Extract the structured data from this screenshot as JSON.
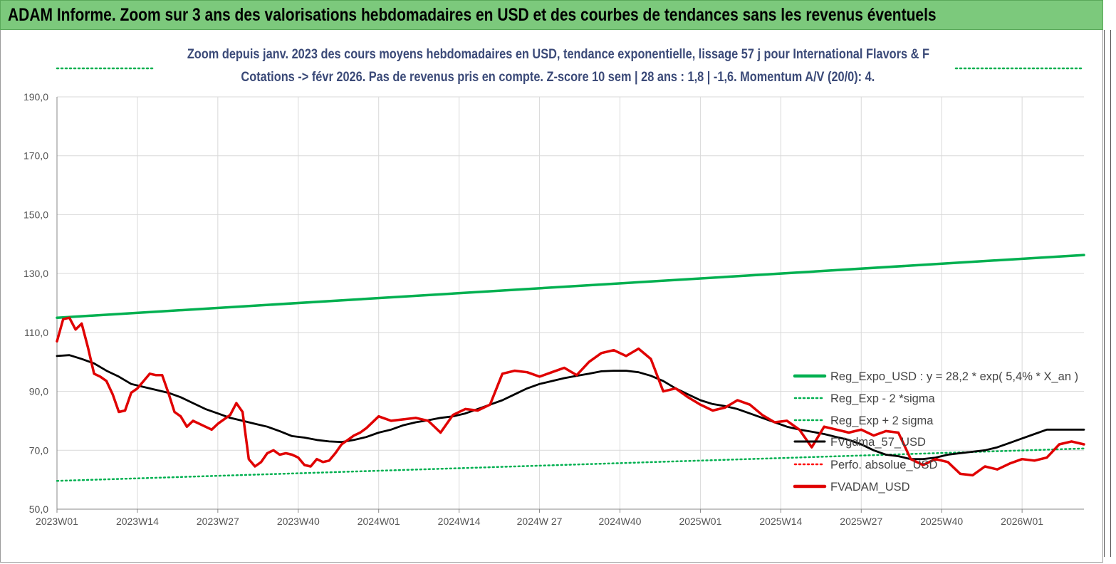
{
  "header": {
    "title": "ADAM Informe. Zoom sur 3 ans des valorisations hebdomadaires en USD et des courbes de tendances sans les revenus éventuels"
  },
  "chart_data": {
    "type": "line",
    "title_line1": "Zoom depuis janv. 2023 des cours moyens hebdomadaires en USD, tendance exponentielle, lissage 57 j pour International Flavors & F",
    "title_line2": "Cotations -> févr 2026. Pas de revenus pris en compte. Z-score 10 sem | 28 ans : 1,8 | -1,6. Momentum A/V (20/0): 4.",
    "y_ticks": [
      "50,0",
      "70,0",
      "90,0",
      "110,0",
      "130,0",
      "150,0",
      "170,0",
      "190,0"
    ],
    "ylim": [
      50,
      190
    ],
    "x_ticks": [
      "2023W01",
      "2023W14",
      "2023W27",
      "2023W40",
      "2024W01",
      "2024W14",
      "2024W 27",
      "2024W40",
      "2025W01",
      "2025W14",
      "2025W27",
      "2025W40",
      "2026W01"
    ],
    "x_range_weeks": [
      0,
      166
    ],
    "grid": true,
    "legend_position": "right",
    "series": [
      {
        "name": "Reg_Expo_USD : y = 28,2 * exp( 5,4% *  X_an )",
        "color": "#00b050",
        "style": "solid-thick",
        "x": [
          0,
          166
        ],
        "values": [
          115.0,
          136.3
        ]
      },
      {
        "name": "Reg_Exp - 2 *sigma",
        "color": "#00b050",
        "style": "dotted",
        "x": [
          0,
          166
        ],
        "values": [
          59.6,
          70.6
        ]
      },
      {
        "name": "Reg_Exp + 2 sigma",
        "color": "#00b050",
        "style": "dotted",
        "x": [
          0,
          166
        ],
        "values": [
          199.5,
          199.5
        ]
      },
      {
        "name": "FVgdma_57_USD",
        "color": "#000000",
        "style": "solid",
        "x": [
          0,
          2,
          4,
          6,
          8,
          10,
          12,
          14,
          16,
          18,
          20,
          22,
          24,
          26,
          28,
          30,
          32,
          34,
          36,
          38,
          40,
          42,
          44,
          46,
          48,
          50,
          52,
          54,
          56,
          58,
          60,
          62,
          64,
          66,
          68,
          70,
          72,
          74,
          76,
          78,
          80,
          82,
          84,
          86,
          88,
          90,
          92,
          94,
          96,
          98,
          100,
          102,
          104,
          106,
          108,
          110,
          112,
          114,
          116,
          118,
          120,
          122,
          124,
          126,
          128,
          130,
          132,
          134,
          136,
          138,
          140,
          142,
          144,
          146,
          148,
          150,
          152,
          154,
          156,
          158,
          160,
          162,
          164,
          166
        ],
        "values": [
          102.0,
          102.3,
          101.0,
          99.5,
          97.0,
          95.0,
          92.5,
          91.5,
          90.5,
          89.5,
          88.0,
          86.0,
          84.0,
          82.5,
          81.0,
          80.0,
          79.0,
          78.0,
          76.5,
          74.8,
          74.3,
          73.5,
          73.0,
          72.8,
          73.5,
          74.5,
          76.0,
          77.0,
          78.5,
          79.5,
          80.2,
          81.0,
          81.5,
          82.5,
          84.0,
          85.5,
          87.0,
          89.0,
          91.0,
          92.5,
          93.5,
          94.5,
          95.3,
          96.0,
          96.8,
          97.0,
          97.0,
          96.5,
          95.3,
          93.5,
          91.0,
          89.0,
          87.0,
          85.7,
          85.0,
          84.0,
          82.5,
          81.0,
          79.5,
          78.0,
          77.0,
          76.3,
          75.5,
          74.5,
          73.5,
          72.0,
          70.0,
          68.5,
          68.0,
          67.0,
          67.0,
          67.5,
          68.5,
          69.0,
          69.5,
          70.0,
          71.0,
          72.5,
          74.0,
          75.5,
          77.0,
          77.0,
          77.0,
          77.0
        ]
      },
      {
        "name": "Perfo. absolue_USD",
        "color": "#ff0000",
        "style": "dotted",
        "x": [],
        "values": []
      },
      {
        "name": "FVADAM_USD",
        "color": "#e00000",
        "style": "solid-thick",
        "x": [
          0,
          1,
          2,
          3,
          4,
          5,
          6,
          7,
          8,
          9,
          10,
          11,
          12,
          13,
          14,
          15,
          16,
          17,
          18,
          19,
          20,
          21,
          22,
          23,
          24,
          25,
          26,
          27,
          28,
          29,
          30,
          31,
          32,
          33,
          34,
          35,
          36,
          37,
          38,
          39,
          40,
          41,
          42,
          43,
          44,
          45,
          46,
          47,
          48,
          49,
          50,
          52,
          54,
          56,
          58,
          60,
          62,
          64,
          66,
          68,
          70,
          72,
          74,
          76,
          78,
          80,
          82,
          84,
          86,
          88,
          90,
          92,
          94,
          96,
          98,
          100,
          102,
          104,
          106,
          108,
          110,
          112,
          114,
          116,
          118,
          120,
          122,
          124,
          126,
          128,
          130,
          132,
          134,
          136,
          138,
          140,
          142,
          144,
          146,
          148,
          150,
          152,
          154,
          156,
          158,
          160,
          162,
          164,
          166
        ],
        "values": [
          107.0,
          114.5,
          115.0,
          111.0,
          113.0,
          105.0,
          96.0,
          95.0,
          93.5,
          89.0,
          83.0,
          83.5,
          89.5,
          91.0,
          93.5,
          96.0,
          95.5,
          95.5,
          89.5,
          83.0,
          81.5,
          78.0,
          80.0,
          79.0,
          78.0,
          77.0,
          79.0,
          80.5,
          82.0,
          86.0,
          83.0,
          67.0,
          64.5,
          66.0,
          69.0,
          70.0,
          68.5,
          69.0,
          68.5,
          67.5,
          65.0,
          64.5,
          67.0,
          66.0,
          66.5,
          69.0,
          72.0,
          73.5,
          75.0,
          76.0,
          77.5,
          81.5,
          80.0,
          80.5,
          81.0,
          80.0,
          76.0,
          82.0,
          84.0,
          83.5,
          85.5,
          96.0,
          97.0,
          96.5,
          95.0,
          96.5,
          98.0,
          95.5,
          100.0,
          103.0,
          104.0,
          102.0,
          104.5,
          101.0,
          90.0,
          91.0,
          88.0,
          85.5,
          83.5,
          84.5,
          87.0,
          85.5,
          82.0,
          79.5,
          80.0,
          77.0,
          71.0,
          78.0,
          77.0,
          76.0,
          77.0,
          75.0,
          76.5,
          76.0,
          67.0,
          65.0,
          67.0,
          66.0,
          62.0,
          61.5,
          64.5,
          63.5,
          65.5,
          67.0,
          66.5,
          67.5,
          72.0,
          73.0,
          72.0
        ]
      }
    ]
  }
}
